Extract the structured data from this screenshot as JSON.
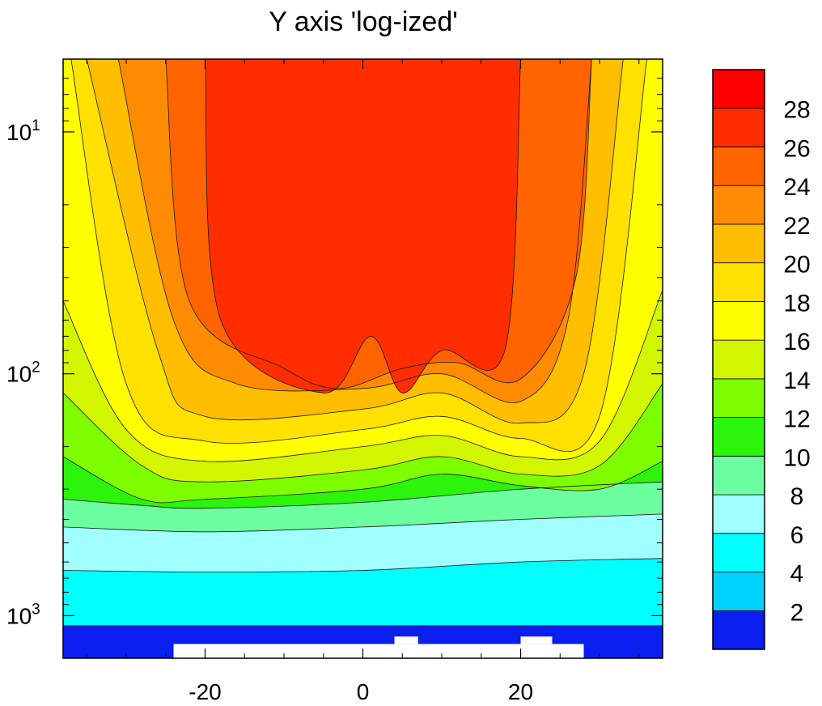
{
  "chart_data": {
    "type": "contour",
    "title": "Y axis 'log-ized'",
    "xlabel": "",
    "ylabel": "",
    "xlim": [
      -38,
      38
    ],
    "ylim": [
      5,
      1500
    ],
    "y_scale": "log",
    "y_reversed": true,
    "x_ticks": [
      -20,
      0,
      20
    ],
    "x_tick_labels": [
      "-20",
      "0",
      "20"
    ],
    "y_ticks": [
      10,
      100,
      1000
    ],
    "y_tick_labels": [
      {
        "base": "10",
        "exp": "1"
      },
      {
        "base": "10",
        "exp": "2"
      },
      {
        "base": "10",
        "exp": "3"
      }
    ],
    "contour_levels": [
      2,
      4,
      6,
      8,
      10,
      12,
      14,
      16,
      18,
      20,
      22,
      24,
      26,
      28
    ],
    "colorbar_labels": [
      "2",
      "4",
      "6",
      "8",
      "10",
      "12",
      "14",
      "16",
      "18",
      "20",
      "22",
      "24",
      "26",
      "28"
    ],
    "colors": [
      "#0a1ef0",
      "#00d2ff",
      "#00ffff",
      "#a0ffff",
      "#6cffa0",
      "#2cf40a",
      "#7dff00",
      "#d2f500",
      "#ffff00",
      "#ffe100",
      "#ffbe00",
      "#ff8c00",
      "#ff6400",
      "#ff2d00",
      "#ff0000"
    ],
    "grid": false,
    "colorbar_position": "right",
    "contour_lines": [
      {
        "level": 4,
        "points": [
          [
            -38,
            1100
          ],
          [
            -20,
            1100
          ],
          [
            0,
            1100
          ],
          [
            20,
            1100
          ],
          [
            38,
            1100
          ]
        ]
      },
      {
        "level": 6,
        "points": [
          [
            -38,
            650
          ],
          [
            -20,
            660
          ],
          [
            0,
            650
          ],
          [
            20,
            600
          ],
          [
            38,
            580
          ]
        ]
      },
      {
        "level": 8,
        "points": [
          [
            -38,
            430
          ],
          [
            -20,
            450
          ],
          [
            0,
            430
          ],
          [
            20,
            400
          ],
          [
            38,
            380
          ]
        ]
      },
      {
        "level": 10,
        "points": [
          [
            -38,
            330
          ],
          [
            -28,
            350
          ],
          [
            -20,
            360
          ],
          [
            0,
            340
          ],
          [
            20,
            300
          ],
          [
            38,
            280
          ]
        ]
      },
      {
        "level": 12,
        "points": [
          [
            -38,
            220
          ],
          [
            -28,
            330
          ],
          [
            -20,
            330
          ],
          [
            0,
            300
          ],
          [
            10,
            260
          ],
          [
            20,
            290
          ],
          [
            30,
            300
          ],
          [
            38,
            230
          ]
        ]
      },
      {
        "level": 14,
        "points": [
          [
            -38,
            120
          ],
          [
            -28,
            240
          ],
          [
            -20,
            280
          ],
          [
            0,
            250
          ],
          [
            10,
            220
          ],
          [
            20,
            260
          ],
          [
            30,
            240
          ],
          [
            38,
            110
          ]
        ]
      },
      {
        "level": 16,
        "points": [
          [
            -38,
            50
          ],
          [
            -30,
            170
          ],
          [
            -20,
            230
          ],
          [
            0,
            200
          ],
          [
            10,
            180
          ],
          [
            20,
            220
          ],
          [
            30,
            190
          ],
          [
            38,
            45
          ]
        ]
      },
      {
        "level": 18,
        "points": [
          [
            -37,
            5
          ],
          [
            -30,
            110
          ],
          [
            -20,
            190
          ],
          [
            0,
            170
          ],
          [
            10,
            150
          ],
          [
            20,
            185
          ],
          [
            30,
            150
          ],
          [
            36,
            5
          ]
        ]
      },
      {
        "level": 20,
        "points": [
          [
            -35,
            5
          ],
          [
            -26,
            80
          ],
          [
            -20,
            150
          ],
          [
            0,
            140
          ],
          [
            10,
            120
          ],
          [
            20,
            160
          ],
          [
            28,
            100
          ],
          [
            33,
            5
          ]
        ]
      },
      {
        "level": 22,
        "points": [
          [
            -31,
            5
          ],
          [
            -24,
            60
          ],
          [
            -16,
            110
          ],
          [
            0,
            115
          ],
          [
            10,
            100
          ],
          [
            20,
            130
          ],
          [
            26,
            60
          ],
          [
            29,
            5
          ]
        ]
      },
      {
        "level": 24,
        "points": [
          [
            -25,
            5
          ],
          [
            -22,
            50
          ],
          [
            -10,
            95
          ],
          [
            -3,
            115
          ],
          [
            5,
            95
          ],
          [
            12,
            90
          ],
          [
            20,
            105
          ],
          [
            27,
            40
          ],
          [
            29,
            5
          ]
        ]
      },
      {
        "level": 26,
        "points": [
          [
            -20,
            5
          ],
          [
            -18,
            60
          ],
          [
            -5,
            120
          ],
          [
            1,
            70
          ],
          [
            5,
            120
          ],
          [
            10,
            80
          ],
          [
            18,
            80
          ],
          [
            20,
            5
          ]
        ]
      }
    ],
    "missing_regions": [
      {
        "x": [
          -24,
          28
        ],
        "y": [
          1310,
          1500
        ]
      },
      {
        "x": [
          4,
          7
        ],
        "y": [
          1220,
          1310
        ]
      },
      {
        "x": [
          20,
          24
        ],
        "y": [
          1220,
          1310
        ]
      }
    ]
  }
}
